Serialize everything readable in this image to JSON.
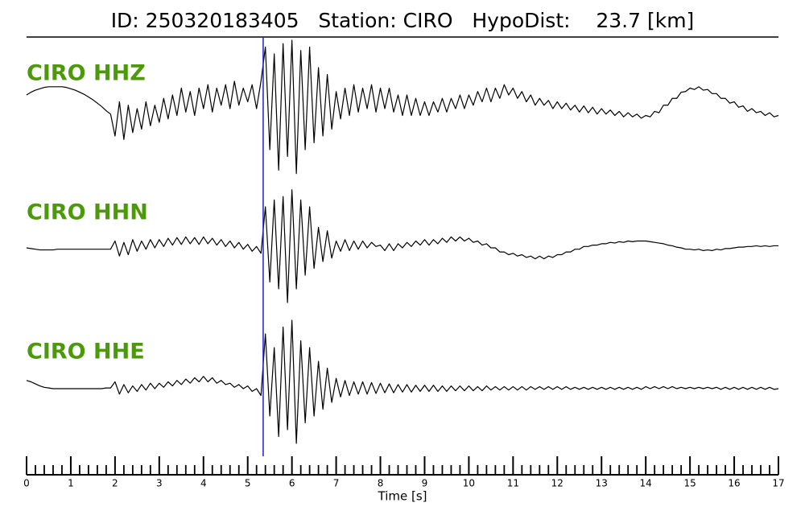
{
  "chart_data": {
    "type": "line",
    "title": "ID: 250320183405   Station: CIRO   HypoDist:    23.7 [km]",
    "xlabel": "Time [s]",
    "xlim": [
      0,
      17
    ],
    "xticks": [
      0,
      1,
      2,
      3,
      4,
      5,
      6,
      7,
      8,
      9,
      10,
      11,
      12,
      13,
      14,
      15,
      16,
      17
    ],
    "xticks_minor": [
      0.2,
      0.4,
      0.6,
      0.8,
      1.2,
      1.4,
      1.6,
      1.8,
      2.2,
      2.4,
      2.6,
      2.8,
      3.2,
      3.4,
      3.6,
      3.8,
      4.2,
      4.4,
      4.6,
      4.8,
      5.2,
      5.4,
      5.6,
      5.8,
      6.2,
      6.4,
      6.6,
      6.8,
      7.2,
      7.4,
      7.6,
      7.8,
      8.2,
      8.4,
      8.6,
      8.8,
      9.2,
      9.4,
      9.6,
      9.8,
      10.2,
      10.4,
      10.6,
      10.8,
      11.2,
      11.4,
      11.6,
      11.8,
      12.2,
      12.4,
      12.6,
      12.8,
      13.2,
      13.4,
      13.6,
      13.8,
      14.2,
      14.4,
      14.6,
      14.8,
      15.2,
      15.4,
      15.6,
      15.8,
      16.2,
      16.4,
      16.6,
      16.8
    ],
    "ylim": [
      -1,
      1
    ],
    "pick_time": 5.35,
    "pick_color": "#1f1fd0",
    "label_color": "#4c9a0a",
    "line_color": "#000000",
    "x": [
      0,
      0.1,
      0.2,
      0.3,
      0.4,
      0.5,
      0.6,
      0.7,
      0.8,
      0.9,
      1,
      1.1,
      1.2,
      1.3,
      1.4,
      1.5,
      1.6,
      1.7,
      1.8,
      1.9,
      2,
      2.1,
      2.2,
      2.3,
      2.4,
      2.5,
      2.6,
      2.7,
      2.8,
      2.9,
      3,
      3.1,
      3.2,
      3.3,
      3.4,
      3.5,
      3.6,
      3.7,
      3.8,
      3.9,
      4,
      4.1,
      4.2,
      4.3,
      4.4,
      4.5,
      4.6,
      4.7,
      4.8,
      4.9,
      5,
      5.1,
      5.2,
      5.3,
      5.4,
      5.5,
      5.6,
      5.7,
      5.8,
      5.9,
      6,
      6.1,
      6.2,
      6.3,
      6.4,
      6.5,
      6.6,
      6.7,
      6.8,
      6.9,
      7,
      7.1,
      7.2,
      7.3,
      7.4,
      7.5,
      7.6,
      7.7,
      7.8,
      7.9,
      8,
      8.1,
      8.2,
      8.3,
      8.4,
      8.5,
      8.6,
      8.7,
      8.8,
      8.9,
      9,
      9.1,
      9.2,
      9.3,
      9.4,
      9.5,
      9.6,
      9.7,
      9.8,
      9.9,
      10,
      10.1,
      10.2,
      10.3,
      10.4,
      10.5,
      10.6,
      10.7,
      10.8,
      10.9,
      11,
      11.1,
      11.2,
      11.3,
      11.4,
      11.5,
      11.6,
      11.7,
      11.8,
      11.9,
      12,
      12.1,
      12.2,
      12.3,
      12.4,
      12.5,
      12.6,
      12.7,
      12.8,
      12.9,
      13,
      13.1,
      13.2,
      13.3,
      13.4,
      13.5,
      13.6,
      13.7,
      13.8,
      13.9,
      14,
      14.1,
      14.2,
      14.3,
      14.4,
      14.5,
      14.6,
      14.7,
      14.8,
      14.9,
      15,
      15.1,
      15.2,
      15.3,
      15.4,
      15.5,
      15.6,
      15.7,
      15.8,
      15.9,
      16,
      16.1,
      16.2,
      16.3,
      16.4,
      16.5,
      16.6,
      16.7,
      16.8,
      16.9,
      17
    ],
    "series": [
      {
        "name": "CIRO HHZ",
        "values": [
          0.2,
          0.24,
          0.27,
          0.29,
          0.31,
          0.32,
          0.32,
          0.32,
          0.32,
          0.31,
          0.29,
          0.27,
          0.24,
          0.21,
          0.17,
          0.13,
          0.08,
          0.03,
          -0.03,
          -0.08,
          -0.4,
          0.1,
          -0.45,
          0.05,
          -0.35,
          0.0,
          -0.3,
          0.1,
          -0.25,
          0.05,
          -0.2,
          0.15,
          -0.15,
          0.2,
          -0.1,
          0.3,
          -0.05,
          0.25,
          -0.1,
          0.3,
          0.0,
          0.35,
          -0.05,
          0.3,
          0.05,
          0.35,
          0.0,
          0.4,
          0.05,
          0.3,
          0.1,
          0.35,
          0.0,
          0.4,
          0.9,
          -0.6,
          0.8,
          -0.9,
          0.95,
          -0.7,
          1.0,
          -0.95,
          0.85,
          -0.6,
          0.9,
          -0.5,
          0.6,
          -0.4,
          0.5,
          -0.3,
          0.25,
          -0.15,
          0.3,
          -0.1,
          0.35,
          -0.05,
          0.3,
          0.0,
          0.35,
          -0.05,
          0.3,
          0.0,
          0.3,
          -0.05,
          0.2,
          -0.1,
          0.2,
          -0.1,
          0.15,
          -0.1,
          0.1,
          -0.1,
          0.1,
          -0.05,
          0.15,
          -0.05,
          0.15,
          0.0,
          0.2,
          0.0,
          0.2,
          0.05,
          0.25,
          0.1,
          0.3,
          0.1,
          0.3,
          0.15,
          0.35,
          0.2,
          0.3,
          0.15,
          0.25,
          0.1,
          0.2,
          0.05,
          0.15,
          0.05,
          0.12,
          0.0,
          0.1,
          0.0,
          0.08,
          -0.02,
          0.05,
          -0.05,
          0.04,
          -0.06,
          0.02,
          -0.08,
          0.0,
          -0.08,
          -0.02,
          -0.1,
          -0.04,
          -0.12,
          -0.06,
          -0.12,
          -0.08,
          -0.14,
          -0.1,
          -0.12,
          -0.04,
          -0.06,
          0.05,
          0.05,
          0.15,
          0.15,
          0.24,
          0.25,
          0.3,
          0.28,
          0.32,
          0.27,
          0.28,
          0.22,
          0.22,
          0.15,
          0.15,
          0.08,
          0.1,
          0.02,
          0.04,
          -0.04,
          0.0,
          -0.06,
          -0.04,
          -0.1,
          -0.06,
          -0.12,
          -0.1
        ]
      },
      {
        "name": "CIRO HHN",
        "values": [
          0.0,
          -0.01,
          -0.02,
          -0.03,
          -0.03,
          -0.03,
          -0.03,
          -0.02,
          -0.02,
          -0.02,
          -0.02,
          -0.02,
          -0.02,
          -0.02,
          -0.02,
          -0.02,
          -0.02,
          -0.02,
          -0.02,
          -0.02,
          0.1,
          -0.12,
          0.08,
          -0.1,
          0.12,
          -0.05,
          0.1,
          -0.02,
          0.12,
          0.0,
          0.12,
          0.02,
          0.14,
          0.04,
          0.15,
          0.05,
          0.16,
          0.06,
          0.15,
          0.05,
          0.16,
          0.06,
          0.14,
          0.04,
          0.12,
          0.02,
          0.1,
          0.0,
          0.08,
          -0.02,
          0.05,
          -0.05,
          0.02,
          -0.08,
          0.6,
          -0.5,
          0.7,
          -0.6,
          0.75,
          -0.8,
          0.85,
          -0.6,
          0.7,
          -0.4,
          0.6,
          -0.3,
          0.3,
          -0.2,
          0.25,
          -0.15,
          0.1,
          -0.05,
          0.12,
          -0.04,
          0.1,
          -0.02,
          0.1,
          0.0,
          0.08,
          0.02,
          0.04,
          -0.04,
          0.06,
          -0.04,
          0.06,
          0.0,
          0.08,
          0.02,
          0.1,
          0.04,
          0.12,
          0.04,
          0.12,
          0.06,
          0.14,
          0.08,
          0.16,
          0.1,
          0.16,
          0.1,
          0.14,
          0.08,
          0.1,
          0.04,
          0.06,
          0.0,
          0.0,
          -0.06,
          -0.06,
          -0.1,
          -0.08,
          -0.12,
          -0.1,
          -0.14,
          -0.12,
          -0.16,
          -0.12,
          -0.16,
          -0.12,
          -0.14,
          -0.1,
          -0.1,
          -0.06,
          -0.06,
          -0.02,
          -0.02,
          0.02,
          0.02,
          0.04,
          0.04,
          0.06,
          0.06,
          0.08,
          0.07,
          0.09,
          0.08,
          0.1,
          0.09,
          0.1,
          0.1,
          0.1,
          0.09,
          0.08,
          0.07,
          0.06,
          0.04,
          0.03,
          0.01,
          0.0,
          -0.02,
          -0.02,
          -0.03,
          -0.02,
          -0.04,
          -0.03,
          -0.04,
          -0.02,
          -0.03,
          -0.01,
          -0.01,
          0.0,
          0.01,
          0.01,
          0.02,
          0.02,
          0.03,
          0.02,
          0.03,
          0.02,
          0.03,
          0.03
        ]
      },
      {
        "name": "CIRO HHE",
        "values": [
          0.12,
          0.1,
          0.07,
          0.04,
          0.02,
          0.01,
          0.0,
          0.0,
          0.0,
          0.0,
          0.0,
          0.0,
          0.0,
          0.0,
          0.0,
          0.0,
          0.0,
          0.0,
          0.01,
          0.01,
          0.1,
          -0.08,
          0.06,
          -0.06,
          0.04,
          -0.04,
          0.06,
          -0.02,
          0.08,
          0.0,
          0.08,
          0.02,
          0.1,
          0.04,
          0.12,
          0.06,
          0.14,
          0.08,
          0.16,
          0.1,
          0.18,
          0.1,
          0.16,
          0.08,
          0.12,
          0.06,
          0.08,
          0.02,
          0.06,
          0.0,
          0.04,
          -0.04,
          0.0,
          -0.1,
          0.8,
          -0.4,
          0.6,
          -0.7,
          0.9,
          -0.6,
          1.0,
          -0.8,
          0.7,
          -0.5,
          0.6,
          -0.4,
          0.4,
          -0.3,
          0.3,
          -0.2,
          0.15,
          -0.12,
          0.12,
          -0.1,
          0.1,
          -0.08,
          0.1,
          -0.08,
          0.09,
          -0.07,
          0.08,
          -0.06,
          0.07,
          -0.06,
          0.06,
          -0.05,
          0.06,
          -0.05,
          0.05,
          -0.04,
          0.05,
          -0.04,
          0.05,
          -0.04,
          0.04,
          -0.04,
          0.04,
          -0.03,
          0.04,
          -0.03,
          0.04,
          -0.03,
          0.03,
          -0.03,
          0.04,
          -0.02,
          0.03,
          -0.02,
          0.03,
          -0.02,
          0.03,
          -0.02,
          0.03,
          -0.02,
          0.03,
          -0.01,
          0.03,
          -0.01,
          0.03,
          -0.01,
          0.03,
          -0.01,
          0.03,
          -0.01,
          0.02,
          -0.01,
          0.02,
          -0.01,
          0.02,
          -0.01,
          0.02,
          -0.01,
          0.02,
          -0.01,
          0.02,
          -0.01,
          0.02,
          -0.01,
          0.02,
          -0.01,
          0.03,
          0.0,
          0.03,
          0.0,
          0.03,
          0.0,
          0.03,
          0.0,
          0.02,
          0.0,
          0.02,
          0.0,
          0.02,
          0.0,
          0.02,
          0.0,
          0.02,
          -0.01,
          0.02,
          -0.01,
          0.02,
          -0.01,
          0.02,
          -0.01,
          0.02,
          -0.01,
          0.02,
          -0.01,
          0.02,
          -0.01,
          0.0
        ]
      }
    ]
  }
}
